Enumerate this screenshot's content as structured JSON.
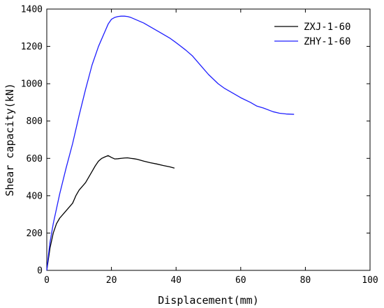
{
  "chart_data": {
    "type": "line",
    "title": "",
    "xlabel": "Displacement(mm)",
    "ylabel": "Shear capacity(kN)",
    "xlim": [
      0,
      100
    ],
    "ylim": [
      0,
      1400
    ],
    "xticks": [
      "0",
      "20",
      "40",
      "60",
      "80",
      "100"
    ],
    "yticks": [
      "0",
      "200",
      "400",
      "600",
      "800",
      "1000",
      "1200",
      "1400"
    ],
    "grid": false,
    "legend_position": "top-right",
    "series": [
      {
        "name": "ZXJ-1-60",
        "color": "#000000",
        "x": [
          0,
          0.5,
          1,
          2,
          3,
          4,
          5,
          6,
          7,
          8,
          9,
          10,
          11,
          12,
          13,
          14,
          15,
          16,
          17,
          18,
          19,
          20,
          21,
          22,
          23,
          24,
          25,
          26,
          27,
          28,
          30,
          32,
          34,
          36,
          38,
          39.5
        ],
        "y": [
          0,
          60,
          120,
          200,
          250,
          280,
          300,
          320,
          340,
          360,
          400,
          430,
          450,
          470,
          500,
          530,
          560,
          585,
          600,
          608,
          615,
          605,
          597,
          598,
          600,
          602,
          603,
          600,
          598,
          595,
          585,
          577,
          570,
          562,
          555,
          548
        ]
      },
      {
        "name": "ZHY-1-60",
        "color": "#1f1fff",
        "x": [
          0,
          0.5,
          1,
          2,
          3,
          4,
          6,
          8,
          10,
          12,
          14,
          16,
          18,
          19,
          20,
          21,
          22,
          23,
          24,
          25,
          26,
          28,
          30,
          32,
          35,
          38,
          40,
          43,
          45,
          48,
          50,
          53,
          55,
          58,
          60,
          63,
          65,
          67,
          70,
          72,
          74,
          76.5
        ],
        "y": [
          0,
          80,
          150,
          250,
          330,
          410,
          550,
          680,
          830,
          970,
          1100,
          1200,
          1280,
          1320,
          1345,
          1355,
          1360,
          1362,
          1362,
          1360,
          1355,
          1340,
          1325,
          1305,
          1275,
          1245,
          1220,
          1180,
          1150,
          1090,
          1050,
          1000,
          975,
          945,
          925,
          900,
          880,
          870,
          850,
          842,
          838,
          836
        ]
      }
    ]
  }
}
